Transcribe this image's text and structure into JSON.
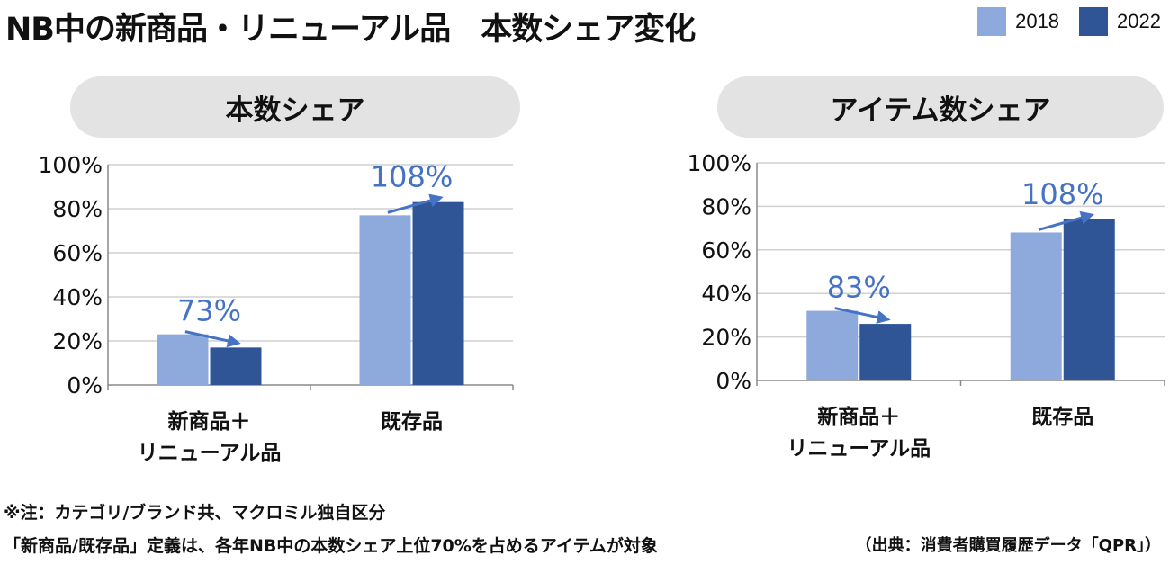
{
  "title": "NB中の新商品・リニューアル品　本数シェア変化",
  "legend": [
    {
      "label": "2018",
      "color": "#8eaadc"
    },
    {
      "label": "2022",
      "color": "#2f5597"
    }
  ],
  "colors": {
    "arrow": "#4472c4",
    "change_label": "#4472c4",
    "grid": "#d0d0d0",
    "axis": "#888888"
  },
  "chart_data": [
    {
      "type": "bar",
      "title": "本数シェア",
      "categories": [
        "新商品＋\nリニューアル品",
        "既存品"
      ],
      "series": [
        {
          "name": "2018",
          "values": [
            23,
            77
          ]
        },
        {
          "name": "2022",
          "values": [
            17,
            83
          ]
        }
      ],
      "change_labels": [
        "73%",
        "108%"
      ],
      "ylim": [
        0,
        100
      ],
      "yticks": [
        "0%",
        "20%",
        "40%",
        "60%",
        "80%",
        "100%"
      ],
      "grid": true
    },
    {
      "type": "bar",
      "title": "アイテム数シェア",
      "categories": [
        "新商品＋\nリニューアル品",
        "既存品"
      ],
      "series": [
        {
          "name": "2018",
          "values": [
            32,
            68
          ]
        },
        {
          "name": "2022",
          "values": [
            26,
            74
          ]
        }
      ],
      "change_labels": [
        "83%",
        "108%"
      ],
      "ylim": [
        0,
        100
      ],
      "yticks": [
        "0%",
        "20%",
        "40%",
        "60%",
        "80%",
        "100%"
      ],
      "grid": true
    }
  ],
  "notes": [
    "※注：カテゴリ/ブランド共、マクロミル独自区分",
    "「新商品/既存品」定義は、各年NB中の本数シェア上位70%を占めるアイテムが対象"
  ],
  "source": "（出典：消費者購買履歴データ「QPR」）"
}
